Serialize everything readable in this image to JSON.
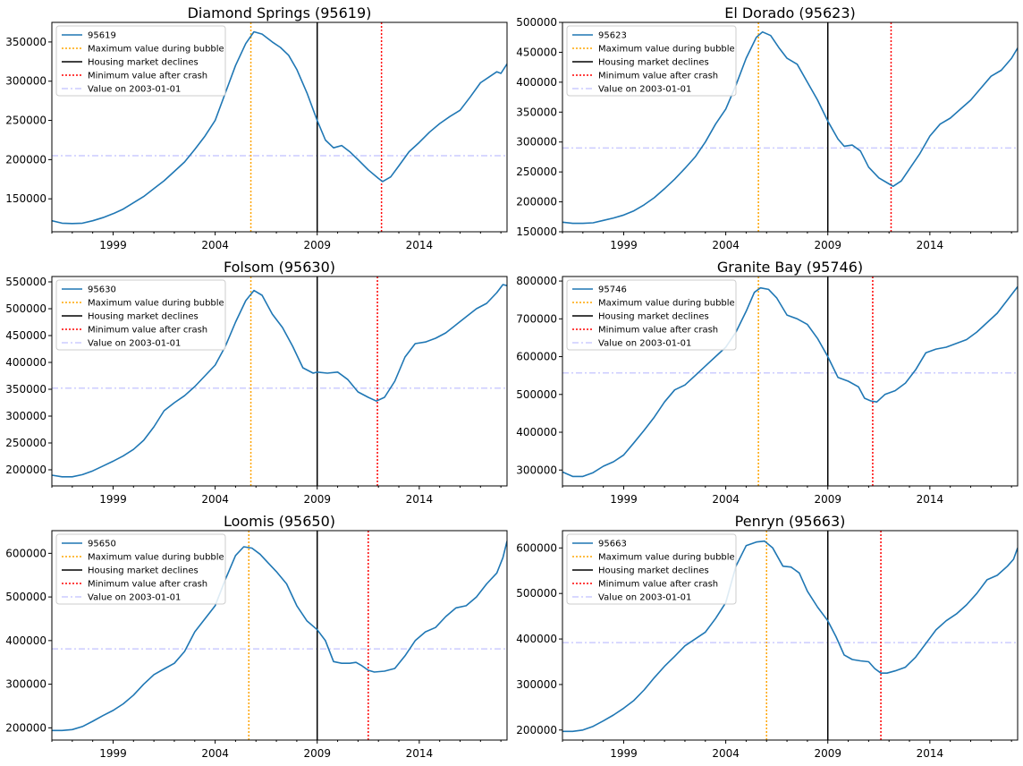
{
  "legend_labels": {
    "max": "Maximum value during bubble",
    "decline": "Housing market declines",
    "min": "Minimum value after crash",
    "baseline": "Value on 2003-01-01"
  },
  "colors": {
    "series": "#1f77b4",
    "max": "#ffa500",
    "decline": "#000000",
    "min": "#ff0000",
    "baseline": "#ccccff"
  },
  "chart_data": [
    {
      "type": "line",
      "title": "Diamond Springs (95619)",
      "xlabel": "",
      "ylabel": "",
      "xlim": [
        1996.0,
        2018.3
      ],
      "ylim": [
        108000,
        375000
      ],
      "xticks": [
        1999,
        2004,
        2009,
        2014
      ],
      "yticks": [
        150000,
        200000,
        250000,
        300000,
        350000
      ],
      "legend_position": "upper-left",
      "series": [
        {
          "name": "95619",
          "x": [
            1996.0,
            1996.5,
            1997.0,
            1997.5,
            1998.0,
            1998.5,
            1999.0,
            1999.5,
            2000.0,
            2000.5,
            2001.0,
            2001.5,
            2002.0,
            2002.5,
            2003.0,
            2003.5,
            2004.0,
            2004.5,
            2005.0,
            2005.5,
            2005.9,
            2006.3,
            2006.8,
            2007.2,
            2007.6,
            2008.0,
            2008.5,
            2009.0,
            2009.4,
            2009.8,
            2010.2,
            2010.6,
            2011.0,
            2011.5,
            2012.0,
            2012.2,
            2012.6,
            2013.0,
            2013.5,
            2014.0,
            2014.5,
            2015.0,
            2015.5,
            2016.0,
            2016.5,
            2017.0,
            2017.4,
            2017.8,
            2018.0,
            2018.3
          ],
          "values": [
            122000,
            119000,
            118500,
            119000,
            122000,
            126000,
            131000,
            137000,
            145000,
            153000,
            163000,
            173000,
            185000,
            197000,
            213000,
            230000,
            250000,
            285000,
            320000,
            348000,
            363000,
            360000,
            350000,
            343000,
            333000,
            315000,
            285000,
            250000,
            225000,
            215000,
            218000,
            210000,
            200000,
            187000,
            176000,
            172000,
            178000,
            192000,
            210000,
            222000,
            235000,
            246000,
            255000,
            263000,
            280000,
            298000,
            305000,
            312000,
            310000,
            322000
          ]
        }
      ],
      "markers": {
        "max_x": 2005.75,
        "decline_x": 2009.0,
        "min_x": 2012.15,
        "baseline_y": 205000
      }
    },
    {
      "type": "line",
      "title": "El Dorado (95623)",
      "xlabel": "",
      "ylabel": "",
      "xlim": [
        1996.0,
        2018.3
      ],
      "ylim": [
        150000,
        500000
      ],
      "xticks": [
        1999,
        2004,
        2009,
        2014
      ],
      "yticks": [
        150000,
        200000,
        250000,
        300000,
        350000,
        400000,
        450000,
        500000
      ],
      "legend_position": "upper-left",
      "series": [
        {
          "name": "95623",
          "x": [
            1996.0,
            1996.5,
            1997.0,
            1997.5,
            1998.0,
            1998.5,
            1999.0,
            1999.5,
            2000.0,
            2000.5,
            2001.0,
            2001.5,
            2002.0,
            2002.5,
            2003.0,
            2003.5,
            2004.0,
            2004.5,
            2005.0,
            2005.5,
            2005.8,
            2006.2,
            2006.6,
            2007.0,
            2007.5,
            2008.0,
            2008.5,
            2009.0,
            2009.5,
            2009.8,
            2010.2,
            2010.6,
            2011.0,
            2011.5,
            2012.0,
            2012.2,
            2012.6,
            2013.0,
            2013.5,
            2014.0,
            2014.5,
            2015.0,
            2015.5,
            2016.0,
            2016.5,
            2017.0,
            2017.5,
            2018.0,
            2018.3
          ],
          "values": [
            166000,
            164000,
            164000,
            165000,
            169000,
            173000,
            178000,
            185000,
            195000,
            207000,
            222000,
            238000,
            256000,
            275000,
            300000,
            330000,
            355000,
            395000,
            440000,
            475000,
            484000,
            478000,
            458000,
            440000,
            430000,
            400000,
            370000,
            335000,
            305000,
            293000,
            295000,
            285000,
            258000,
            240000,
            230000,
            226000,
            235000,
            255000,
            280000,
            310000,
            330000,
            340000,
            355000,
            370000,
            390000,
            410000,
            420000,
            440000,
            457000
          ]
        }
      ],
      "markers": {
        "max_x": 2005.6,
        "decline_x": 2009.0,
        "min_x": 2012.1,
        "baseline_y": 290000
      }
    },
    {
      "type": "line",
      "title": "Folsom (95630)",
      "xlabel": "",
      "ylabel": "",
      "xlim": [
        1996.0,
        2018.3
      ],
      "ylim": [
        170000,
        560000
      ],
      "xticks": [
        1999,
        2004,
        2009,
        2014
      ],
      "yticks": [
        200000,
        250000,
        300000,
        350000,
        400000,
        450000,
        500000,
        550000
      ],
      "legend_position": "upper-left",
      "series": [
        {
          "name": "95630",
          "x": [
            1996.0,
            1996.5,
            1997.0,
            1997.5,
            1998.0,
            1998.5,
            1999.0,
            1999.5,
            2000.0,
            2000.5,
            2001.0,
            2001.5,
            2002.0,
            2002.5,
            2003.0,
            2003.5,
            2004.0,
            2004.5,
            2005.0,
            2005.5,
            2005.9,
            2006.3,
            2006.8,
            2007.3,
            2007.8,
            2008.3,
            2008.8,
            2009.0,
            2009.5,
            2010.0,
            2010.5,
            2011.0,
            2011.5,
            2011.9,
            2012.3,
            2012.8,
            2013.3,
            2013.8,
            2014.3,
            2014.8,
            2015.3,
            2015.8,
            2016.3,
            2016.8,
            2017.3,
            2017.8,
            2018.1,
            2018.3
          ],
          "values": [
            190000,
            187000,
            187000,
            191000,
            198000,
            207000,
            216000,
            226000,
            238000,
            255000,
            280000,
            310000,
            325000,
            338000,
            355000,
            375000,
            395000,
            430000,
            475000,
            515000,
            534000,
            525000,
            490000,
            465000,
            430000,
            390000,
            380000,
            382000,
            380000,
            382000,
            368000,
            345000,
            335000,
            328000,
            335000,
            365000,
            410000,
            435000,
            438000,
            445000,
            455000,
            470000,
            485000,
            500000,
            510000,
            530000,
            545000,
            543000
          ]
        }
      ],
      "markers": {
        "max_x": 2005.75,
        "decline_x": 2009.0,
        "min_x": 2011.95,
        "baseline_y": 352000
      }
    },
    {
      "type": "line",
      "title": "Granite Bay (95746)",
      "xlabel": "",
      "ylabel": "",
      "xlim": [
        1996.0,
        2018.3
      ],
      "ylim": [
        258000,
        812000
      ],
      "xticks": [
        1999,
        2004,
        2009,
        2014
      ],
      "yticks": [
        300000,
        400000,
        500000,
        600000,
        700000,
        800000
      ],
      "legend_position": "upper-left",
      "series": [
        {
          "name": "95746",
          "x": [
            1996.0,
            1996.5,
            1997.0,
            1997.5,
            1998.0,
            1998.5,
            1999.0,
            1999.5,
            2000.0,
            2000.5,
            2001.0,
            2001.5,
            2002.0,
            2002.5,
            2003.0,
            2003.5,
            2004.0,
            2004.5,
            2005.0,
            2005.4,
            2005.7,
            2006.1,
            2006.5,
            2007.0,
            2007.5,
            2008.0,
            2008.5,
            2009.0,
            2009.5,
            2010.0,
            2010.5,
            2010.8,
            2011.1,
            2011.4,
            2011.8,
            2012.3,
            2012.8,
            2013.3,
            2013.8,
            2014.3,
            2014.8,
            2015.3,
            2015.8,
            2016.3,
            2016.8,
            2017.3,
            2017.8,
            2018.3
          ],
          "values": [
            295000,
            283000,
            283000,
            293000,
            310000,
            322000,
            340000,
            372000,
            405000,
            440000,
            480000,
            512000,
            525000,
            550000,
            575000,
            600000,
            625000,
            665000,
            720000,
            770000,
            782000,
            778000,
            755000,
            710000,
            700000,
            685000,
            648000,
            600000,
            545000,
            535000,
            520000,
            490000,
            483000,
            480000,
            500000,
            510000,
            530000,
            565000,
            610000,
            620000,
            625000,
            635000,
            645000,
            665000,
            690000,
            715000,
            750000,
            785000
          ]
        }
      ],
      "markers": {
        "max_x": 2005.6,
        "decline_x": 2009.0,
        "min_x": 2011.2,
        "baseline_y": 557000
      }
    },
    {
      "type": "line",
      "title": "Loomis (95650)",
      "xlabel": "",
      "ylabel": "",
      "xlim": [
        1996.0,
        2018.3
      ],
      "ylim": [
        172000,
        652000
      ],
      "xticks": [
        1999,
        2004,
        2009,
        2014
      ],
      "yticks": [
        200000,
        300000,
        400000,
        500000,
        600000
      ],
      "legend_position": "upper-left",
      "series": [
        {
          "name": "95650",
          "x": [
            1996.0,
            1996.5,
            1997.0,
            1997.5,
            1998.0,
            1998.5,
            1999.0,
            1999.5,
            2000.0,
            2000.5,
            2001.0,
            2001.5,
            2002.0,
            2002.5,
            2003.0,
            2003.5,
            2004.0,
            2004.5,
            2005.0,
            2005.4,
            2005.8,
            2006.2,
            2006.6,
            2007.0,
            2007.5,
            2008.0,
            2008.5,
            2009.0,
            2009.4,
            2009.8,
            2010.2,
            2010.6,
            2010.9,
            2011.2,
            2011.5,
            2011.8,
            2012.3,
            2012.8,
            2013.3,
            2013.8,
            2014.3,
            2014.8,
            2015.3,
            2015.8,
            2016.3,
            2016.8,
            2017.3,
            2017.8,
            2018.1,
            2018.3
          ],
          "values": [
            194000,
            194000,
            196000,
            203000,
            215000,
            228000,
            240000,
            255000,
            275000,
            300000,
            322000,
            335000,
            348000,
            375000,
            420000,
            450000,
            480000,
            540000,
            595000,
            615000,
            612000,
            598000,
            578000,
            558000,
            530000,
            480000,
            445000,
            425000,
            400000,
            352000,
            348000,
            348000,
            350000,
            342000,
            332000,
            328000,
            330000,
            336000,
            365000,
            400000,
            420000,
            430000,
            455000,
            475000,
            480000,
            500000,
            530000,
            555000,
            590000,
            628000
          ]
        }
      ],
      "markers": {
        "max_x": 2005.65,
        "decline_x": 2009.0,
        "min_x": 2011.5,
        "baseline_y": 381000
      }
    },
    {
      "type": "line",
      "title": "Penryn (95663)",
      "xlabel": "",
      "ylabel": "",
      "xlim": [
        1996.0,
        2018.3
      ],
      "ylim": [
        178000,
        638000
      ],
      "xticks": [
        1999,
        2004,
        2009,
        2014
      ],
      "yticks": [
        200000,
        300000,
        400000,
        500000,
        600000
      ],
      "legend_position": "upper-left",
      "series": [
        {
          "name": "95663",
          "x": [
            1996.0,
            1996.5,
            1997.0,
            1997.5,
            1998.0,
            1998.5,
            1999.0,
            1999.5,
            2000.0,
            2000.5,
            2001.0,
            2001.5,
            2002.0,
            2002.5,
            2003.0,
            2003.5,
            2004.0,
            2004.5,
            2005.0,
            2005.5,
            2005.9,
            2006.3,
            2006.8,
            2007.2,
            2007.6,
            2008.0,
            2008.5,
            2009.0,
            2009.4,
            2009.8,
            2010.2,
            2010.6,
            2011.0,
            2011.3,
            2011.6,
            2011.9,
            2012.3,
            2012.8,
            2013.3,
            2013.8,
            2014.3,
            2014.8,
            2015.3,
            2015.8,
            2016.3,
            2016.8,
            2017.3,
            2017.8,
            2018.1,
            2018.3
          ],
          "values": [
            197000,
            197000,
            200000,
            208000,
            220000,
            233000,
            248000,
            265000,
            288000,
            315000,
            340000,
            362000,
            385000,
            400000,
            415000,
            445000,
            480000,
            560000,
            605000,
            613000,
            615000,
            600000,
            560000,
            558000,
            545000,
            505000,
            470000,
            440000,
            405000,
            365000,
            355000,
            352000,
            350000,
            335000,
            325000,
            325000,
            330000,
            338000,
            360000,
            390000,
            420000,
            440000,
            455000,
            475000,
            500000,
            530000,
            540000,
            560000,
            575000,
            600000
          ]
        }
      ],
      "markers": {
        "max_x": 2006.0,
        "decline_x": 2009.0,
        "min_x": 2011.6,
        "baseline_y": 392000
      }
    }
  ]
}
